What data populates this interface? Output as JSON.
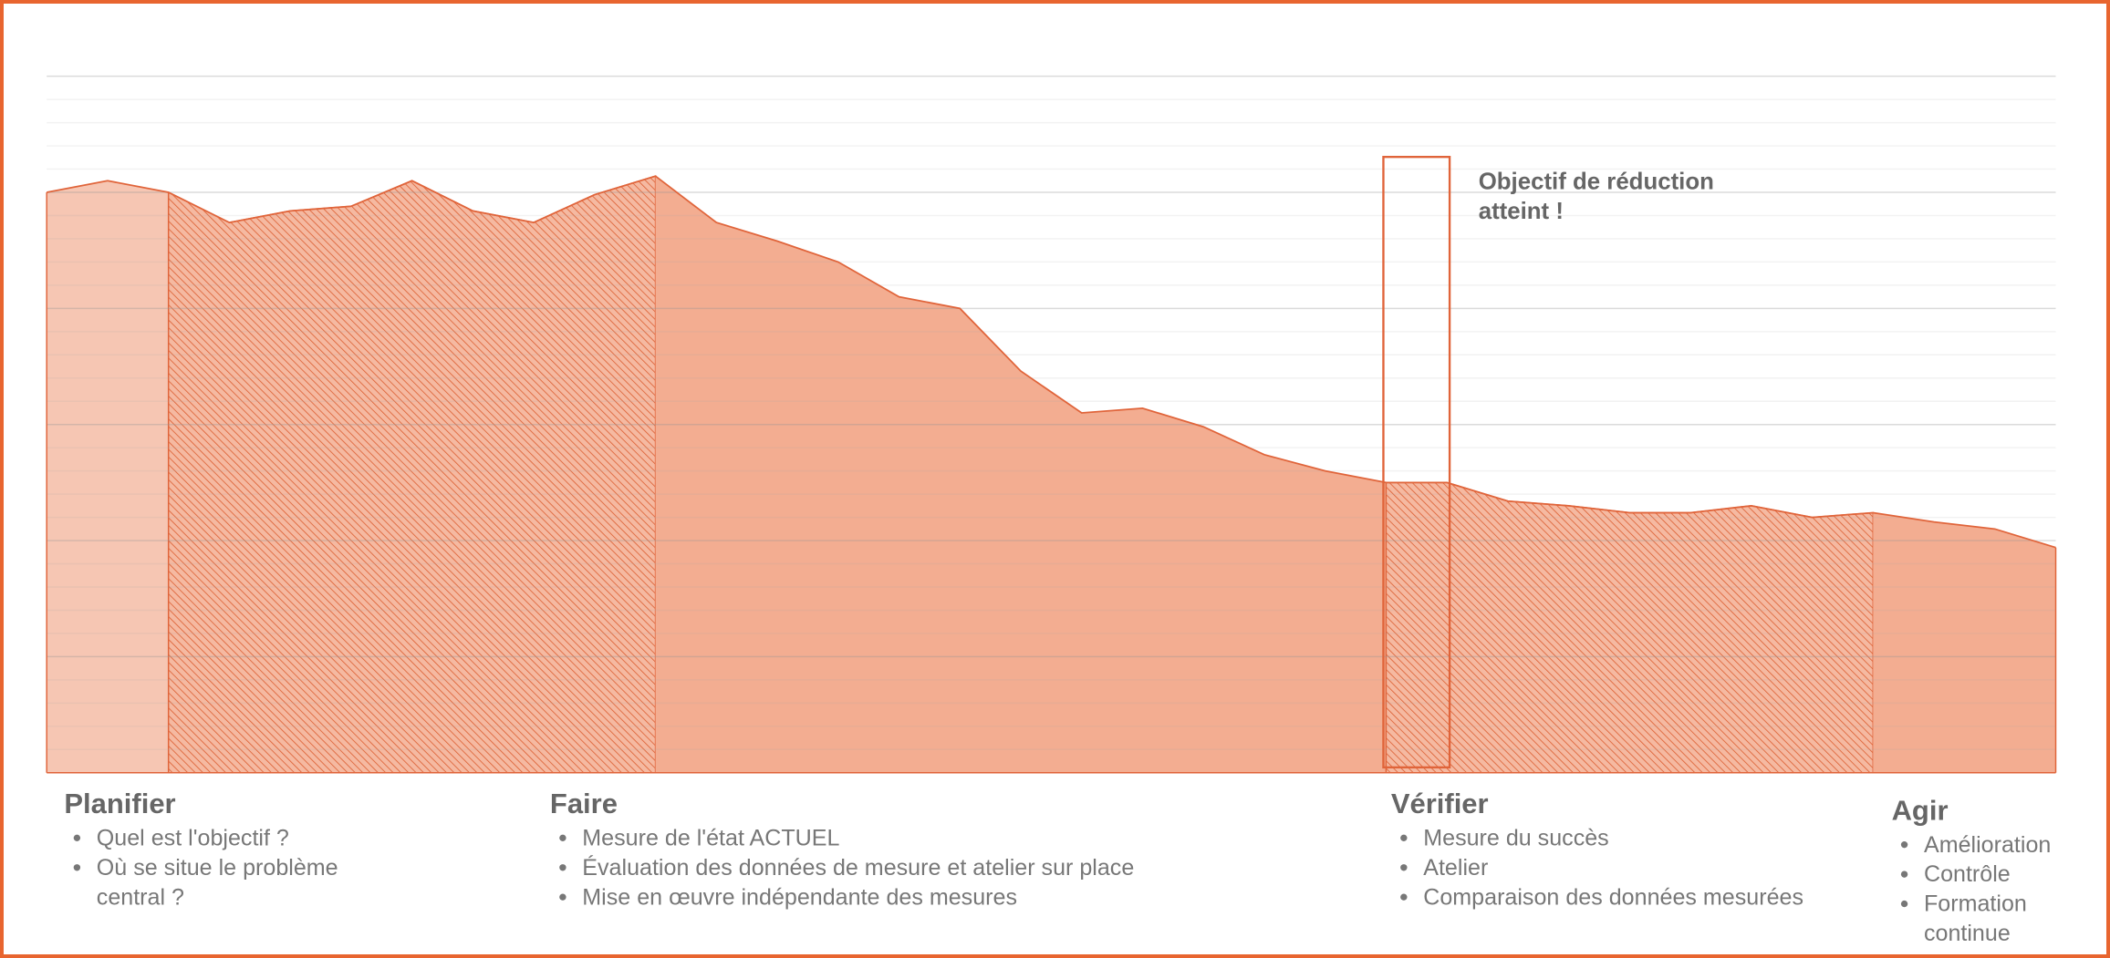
{
  "chart_data": {
    "type": "area",
    "x": [
      0,
      1,
      2,
      3,
      4,
      5,
      6,
      7,
      8,
      9,
      10,
      11,
      12,
      13,
      14,
      15,
      16,
      17,
      18,
      19,
      20,
      21,
      22,
      23,
      24,
      25,
      26,
      27,
      28,
      29,
      30,
      31,
      32,
      33
    ],
    "values": [
      25.0,
      25.5,
      25.0,
      23.7,
      24.2,
      24.4,
      25.5,
      24.2,
      23.7,
      24.9,
      25.7,
      23.7,
      22.9,
      22.0,
      20.5,
      20.0,
      17.3,
      15.5,
      15.7,
      14.9,
      13.7,
      13.0,
      12.5,
      12.5,
      11.7,
      11.5,
      11.2,
      11.2,
      11.5,
      11.0,
      11.2,
      10.8,
      10.5,
      9.7
    ],
    "xlim": [
      0,
      33
    ],
    "ylim": [
      0,
      30
    ],
    "yticks": [
      0,
      1,
      2,
      3,
      4,
      5,
      6,
      7,
      8,
      9,
      10,
      11,
      12,
      13,
      14,
      15,
      16,
      17,
      18,
      19,
      20,
      21,
      22,
      23,
      24,
      25,
      26,
      27,
      28,
      29,
      30
    ],
    "grid": true,
    "color": "#f3ad91",
    "line_color": "#e0643a",
    "regions": [
      {
        "from": 0,
        "to": 2,
        "fill": "#f6c6b3",
        "hatch": false
      },
      {
        "from": 2,
        "to": 10,
        "fill": "#f5b9a1",
        "hatch": true
      },
      {
        "from": 10,
        "to": 22,
        "fill": "#f3ad91",
        "hatch": false
      },
      {
        "from": 22,
        "to": 30,
        "fill": "#f5b9a1",
        "hatch": true
      },
      {
        "from": 30,
        "to": 33,
        "fill": "#f3ad91",
        "hatch": false
      }
    ],
    "highlight": {
      "from": 22,
      "to": 23,
      "label": "Objectif de réduction atteint !"
    },
    "phases": [
      {
        "name": "Planifier",
        "items": [
          "Quel est l'objectif ?",
          "Où se situe le problème central ?"
        ]
      },
      {
        "name": "Faire",
        "items": [
          "Mesure de l'état ACTUEL",
          "Évaluation des données de mesure et atelier sur place",
          "Mise en œuvre indépendante des mesures"
        ]
      },
      {
        "name": "Vérifier",
        "items": [
          "Mesure du succès",
          "Atelier",
          "Comparaison des données mesurées"
        ]
      },
      {
        "name": "Agir",
        "items": [
          "Amélioration",
          "Contrôle",
          "Formation continue"
        ]
      }
    ]
  }
}
